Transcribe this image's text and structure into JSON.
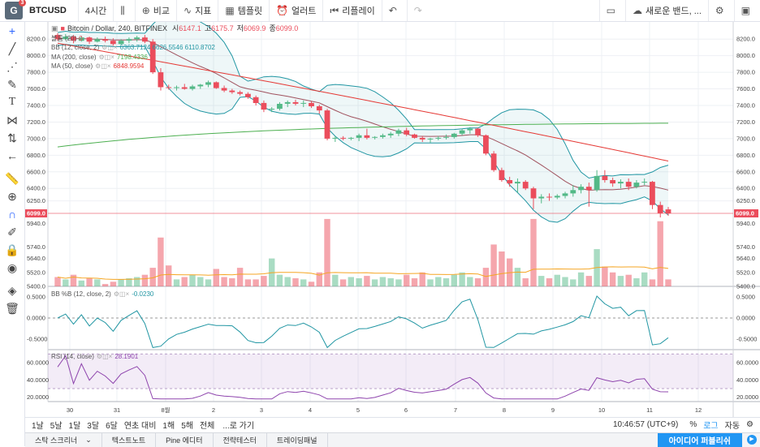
{
  "toolbar": {
    "logo_letter": "G",
    "logo_badge": "3",
    "symbol": "BTCUSD",
    "interval": "4시간",
    "compare": "비교",
    "indicators": "지표",
    "templates": "템플릿",
    "alerts": "얼러트",
    "replay": "리플레이",
    "new_band": "새로운 밴드, ..."
  },
  "legend": {
    "title": "Bitcoin / Dollar, 240, BITFINEX",
    "open_label": "시",
    "open": "6147.1",
    "high_label": "고",
    "high": "6175.7",
    "low_label": "저",
    "low": "6069.9",
    "close_label": "종",
    "close": "6099.0",
    "vol": "볼륨 (20)",
    "vol_val": "0",
    "bb": "BB (12, close, 2)",
    "bb_vals": "6363.7124  6626.5546  6110.8702",
    "ma200": "MA (200, close)",
    "ma200_val": "7198.4336",
    "ma50": "MA (50, close)",
    "ma50_val": "6848.9594",
    "bbb": "BB %B (12, close, 2)",
    "bbb_val": "-0.0230",
    "rsi": "RSI (14, close)",
    "rsi_val": "28.1901"
  },
  "price_axis": [
    "8200.0",
    "8000.0",
    "7800.0",
    "7600.0",
    "7400.0",
    "7200.0",
    "7000.0",
    "6800.0",
    "6600.0",
    "6400.0",
    "6250.0",
    "6099.0"
  ],
  "volume_axis": [
    "5940.0",
    "5740.0",
    "5640.0",
    "5520.0",
    "5400.0"
  ],
  "bbb_axis": [
    "0.5000",
    "0.0000",
    "-0.5000"
  ],
  "rsi_axis": [
    "60.0000",
    "40.0000",
    "20.0000"
  ],
  "time_axis": [
    "30",
    "31",
    "8월",
    "2",
    "3",
    "4",
    "5",
    "6",
    "7",
    "8",
    "9",
    "10",
    "11",
    "12"
  ],
  "current_price": "6099.0",
  "bottom": {
    "ranges": [
      "1날",
      "5날",
      "1달",
      "3달",
      "6달",
      "연초 대비",
      "1해",
      "5해",
      "전체",
      "...로 가기"
    ],
    "clock": "10:46:57 (UTC+9)",
    "percent": "%",
    "log": "로그",
    "auto": "자동"
  },
  "tabs": [
    "스탁 스크리너",
    "텍스트노트",
    "Pine 에디터",
    "전략테스터",
    "트레이딩패널"
  ],
  "publish": "아이디어 퍼블리쉬",
  "colors": {
    "up": "#53b987",
    "down": "#eb4d5c",
    "ma200": "#4caf50",
    "ma50": "#e53935",
    "bb": "#2196a3",
    "rsi": "#8e44ad",
    "accent": "#2196f3"
  },
  "chart_data": {
    "type": "candlestick",
    "candles": [
      [
        8250,
        8270,
        8180,
        8200
      ],
      [
        8200,
        8260,
        8190,
        8230
      ],
      [
        8230,
        8250,
        8150,
        8180
      ],
      [
        8180,
        8240,
        8170,
        8220
      ],
      [
        8220,
        8230,
        8140,
        8170
      ],
      [
        8170,
        8220,
        8160,
        8200
      ],
      [
        8200,
        8230,
        8160,
        8180
      ],
      [
        8180,
        8210,
        8120,
        8140
      ],
      [
        8140,
        8200,
        8130,
        8180
      ],
      [
        8180,
        8220,
        8150,
        8200
      ],
      [
        8200,
        8240,
        8170,
        8220
      ],
      [
        8220,
        8250,
        8150,
        8170
      ],
      [
        8170,
        8200,
        7780,
        7800
      ],
      [
        7800,
        7850,
        7580,
        7620
      ],
      [
        7620,
        7650,
        7590,
        7610
      ],
      [
        7610,
        7640,
        7580,
        7620
      ],
      [
        7620,
        7660,
        7590,
        7600
      ],
      [
        7600,
        7650,
        7580,
        7630
      ],
      [
        7630,
        7660,
        7600,
        7650
      ],
      [
        7650,
        7700,
        7620,
        7680
      ],
      [
        7680,
        7690,
        7600,
        7610
      ],
      [
        7610,
        7640,
        7560,
        7580
      ],
      [
        7580,
        7600,
        7540,
        7560
      ],
      [
        7560,
        7580,
        7520,
        7540
      ],
      [
        7540,
        7560,
        7480,
        7500
      ],
      [
        7500,
        7520,
        7400,
        7430
      ],
      [
        7430,
        7460,
        7320,
        7350
      ],
      [
        7350,
        7380,
        7320,
        7360
      ],
      [
        7360,
        7440,
        7340,
        7420
      ],
      [
        7420,
        7460,
        7380,
        7440
      ],
      [
        7440,
        7470,
        7400,
        7420
      ],
      [
        7420,
        7460,
        7380,
        7430
      ],
      [
        7430,
        7450,
        7370,
        7390
      ],
      [
        7390,
        7410,
        7300,
        7340
      ],
      [
        7340,
        7360,
        6980,
        7000
      ],
      [
        7000,
        7030,
        6960,
        7010
      ],
      [
        7010,
        7030,
        6980,
        7000
      ],
      [
        7000,
        7020,
        6980,
        7010
      ],
      [
        7010,
        7060,
        6970,
        7040
      ],
      [
        7040,
        7120,
        6990,
        7010
      ],
      [
        7010,
        7030,
        6990,
        7020
      ],
      [
        7020,
        7060,
        7000,
        7040
      ],
      [
        7040,
        7080,
        7010,
        7060
      ],
      [
        7060,
        7120,
        7030,
        7100
      ],
      [
        7100,
        7130,
        7030,
        7050
      ],
      [
        7050,
        7060,
        7000,
        7010
      ],
      [
        7010,
        7030,
        6960,
        6990
      ],
      [
        6990,
        7010,
        6950,
        7000
      ],
      [
        7000,
        7030,
        6980,
        7010
      ],
      [
        7010,
        7050,
        6990,
        7020
      ],
      [
        7020,
        7070,
        7000,
        7060
      ],
      [
        7060,
        7120,
        7040,
        7100
      ],
      [
        7100,
        7140,
        7060,
        7120
      ],
      [
        7120,
        7130,
        7020,
        7040
      ],
      [
        7040,
        7050,
        6800,
        6820
      ],
      [
        6820,
        6850,
        6600,
        6620
      ],
      [
        6620,
        6650,
        6480,
        6500
      ],
      [
        6500,
        6540,
        6420,
        6460
      ],
      [
        6460,
        6520,
        6350,
        6480
      ],
      [
        6480,
        6500,
        6380,
        6400
      ],
      [
        6400,
        6420,
        6150,
        6280
      ],
      [
        6280,
        6330,
        6220,
        6300
      ],
      [
        6300,
        6340,
        6250,
        6290
      ],
      [
        6290,
        6330,
        6270,
        6310
      ],
      [
        6310,
        6360,
        6280,
        6340
      ],
      [
        6340,
        6440,
        6300,
        6380
      ],
      [
        6380,
        6450,
        6340,
        6420
      ],
      [
        6420,
        6470,
        6180,
        6380
      ],
      [
        6380,
        6620,
        6360,
        6550
      ],
      [
        6550,
        6620,
        6470,
        6500
      ],
      [
        6500,
        6530,
        6420,
        6460
      ],
      [
        6460,
        6510,
        6400,
        6480
      ],
      [
        6480,
        6520,
        6380,
        6420
      ],
      [
        6420,
        6500,
        6400,
        6470
      ],
      [
        6470,
        6520,
        6440,
        6480
      ],
      [
        6480,
        6490,
        6150,
        6200
      ],
      [
        6200,
        6240,
        6050,
        6100
      ],
      [
        6147.1,
        6175.7,
        6069.9,
        6099.0
      ]
    ],
    "volumes": [
      5480,
      5460,
      5500,
      5450,
      5470,
      5460,
      5420,
      5440,
      5460,
      5470,
      5480,
      5500,
      5560,
      5820,
      5580,
      5460,
      5480,
      5500,
      5480,
      5460,
      5550,
      5480,
      5470,
      5560,
      5460,
      5460,
      5490,
      5640,
      5500,
      5480,
      5470,
      5460,
      5440,
      5520,
      5980,
      5500,
      5460,
      5480,
      5470,
      5490,
      5460,
      5480,
      5470,
      5460,
      5500,
      5470,
      5520,
      5460,
      5480,
      5470,
      5500,
      5520,
      5480,
      5470,
      5560,
      5760,
      5700,
      5640,
      5560,
      5470,
      5980,
      5490,
      5470,
      5500,
      5480,
      5460,
      5520,
      5490,
      5720,
      5570,
      5520,
      5490,
      5500,
      5470,
      5520,
      5460,
      5960,
      5460
    ]
  }
}
